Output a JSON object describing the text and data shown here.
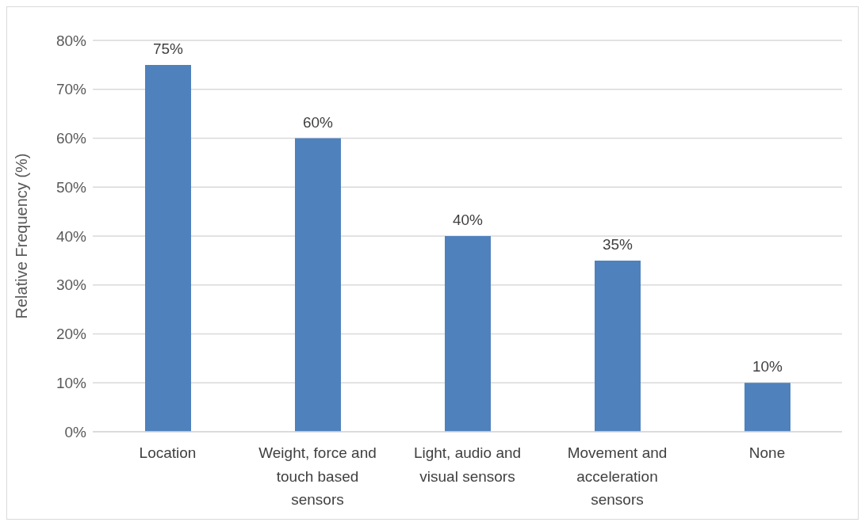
{
  "chart_data": {
    "type": "bar",
    "ylabel": "Relative Frequency (%)",
    "categories": [
      "Location",
      "Weight, force and touch based sensors",
      "Light, audio and visual sensors",
      "Movement and acceleration sensors",
      "None"
    ],
    "values": [
      75,
      60,
      40,
      35,
      10
    ],
    "value_labels": [
      "75%",
      "60%",
      "40%",
      "35%",
      "10%"
    ],
    "color": "#4f81bd",
    "ylim": [
      0,
      80
    ],
    "yticks": [
      {
        "value": 0,
        "label": "0%"
      },
      {
        "value": 10,
        "label": "10%"
      },
      {
        "value": 20,
        "label": "20%"
      },
      {
        "value": 30,
        "label": "30%"
      },
      {
        "value": 40,
        "label": "40%"
      },
      {
        "value": 50,
        "label": "50%"
      },
      {
        "value": 60,
        "label": "60%"
      },
      {
        "value": 70,
        "label": "70%"
      },
      {
        "value": 80,
        "label": "80%"
      }
    ],
    "grid": "y",
    "legend": false
  }
}
